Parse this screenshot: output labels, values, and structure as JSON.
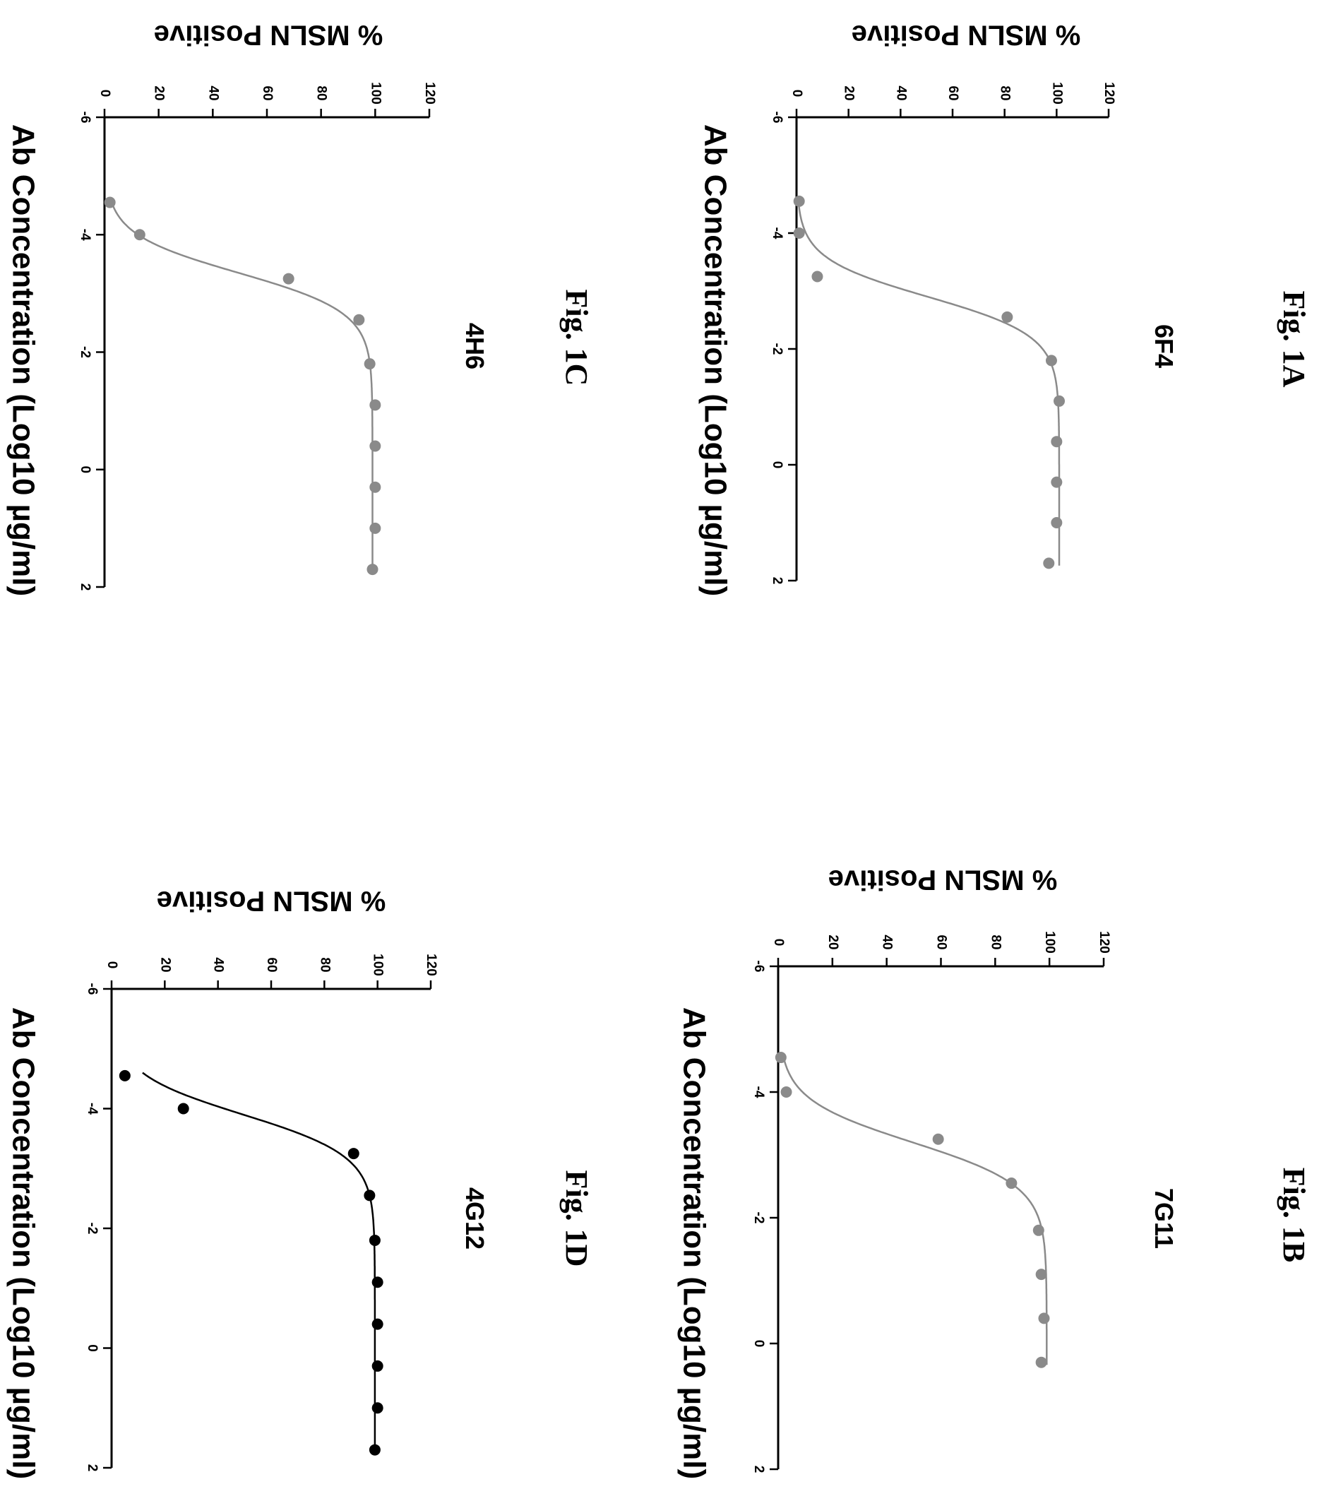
{
  "figure_labels": [
    "Fig. 1A",
    "Fig. 1B",
    "Fig. 1C",
    "Fig. 1D"
  ],
  "chart_data": [
    {
      "type": "scatter",
      "fig_label": "Fig. 1A",
      "title": "6F4",
      "xlabel": "Ab Concentration (Log10 µg/ml)",
      "ylabel": "% MSLN Positive",
      "xlim": [
        -6,
        2
      ],
      "ylim": [
        0,
        120
      ],
      "xticks": [
        -6,
        -4,
        -2,
        0,
        2
      ],
      "yticks": [
        0,
        20,
        40,
        60,
        80,
        100,
        120
      ],
      "color": "#8a8a8a",
      "fit": {
        "bottom": 0,
        "top": 101,
        "ec50": -2.9,
        "hill": 1.3
      },
      "x": [
        -4.55,
        -4.0,
        -3.25,
        -2.55,
        -1.8,
        -1.1,
        -0.4,
        0.3,
        1.0,
        1.7
      ],
      "y": [
        1,
        1,
        8,
        81,
        98,
        101,
        100,
        100,
        100,
        97
      ]
    },
    {
      "type": "scatter",
      "fig_label": "Fig. 1B",
      "title": "7G11",
      "xlabel": "Ab Concentration (Log10 µg/ml)",
      "ylabel": "% MSLN Positive",
      "xlim": [
        -6,
        2
      ],
      "ylim": [
        0,
        120
      ],
      "xticks": [
        -6,
        -4,
        -2,
        0,
        2
      ],
      "yticks": [
        0,
        20,
        40,
        60,
        80,
        100,
        120
      ],
      "color": "#8a8a8a",
      "fit": {
        "bottom": 0,
        "top": 99,
        "ec50": -3.2,
        "hill": 1.25
      },
      "x": [
        -4.55,
        -4.0,
        -3.25,
        -2.55,
        -1.8,
        -1.1,
        -0.4,
        0.3
      ],
      "y": [
        1,
        3,
        59,
        86,
        96,
        97,
        98,
        97
      ]
    },
    {
      "type": "scatter",
      "fig_label": "Fig. 1C",
      "title": "4H6",
      "xlabel": "Ab Concentration (Log10 µg/ml)",
      "ylabel": "% MSLN Positive",
      "xlim": [
        -6,
        2
      ],
      "ylim": [
        0,
        120
      ],
      "xticks": [
        -6,
        -4,
        -2,
        0,
        2
      ],
      "yticks": [
        0,
        20,
        40,
        60,
        80,
        100,
        120
      ],
      "color": "#8a8a8a",
      "fit": {
        "bottom": 0,
        "top": 99,
        "ec50": -3.35,
        "hill": 1.3
      },
      "x": [
        -4.55,
        -4.0,
        -3.25,
        -2.55,
        -1.8,
        -1.1,
        -0.4,
        0.3,
        1.0,
        1.7
      ],
      "y": [
        2,
        13,
        68,
        94,
        98,
        100,
        100,
        100,
        100,
        99
      ]
    },
    {
      "type": "scatter",
      "fig_label": "Fig. 1D",
      "title": "4G12",
      "xlabel": "Ab Concentration (Log10 µg/ml)",
      "ylabel": "% MSLN Positive",
      "xlim": [
        -6,
        2
      ],
      "ylim": [
        0,
        120
      ],
      "xticks": [
        -6,
        -4,
        -2,
        0,
        2
      ],
      "yticks": [
        0,
        20,
        40,
        60,
        80,
        100,
        120
      ],
      "color": "#000000",
      "fit": {
        "bottom": 0,
        "top": 99,
        "ec50": -3.9,
        "hill": 1.25
      },
      "x": [
        -4.55,
        -4.0,
        -3.25,
        -2.55,
        -1.8,
        -1.1,
        -0.4,
        0.3,
        1.0,
        1.7
      ],
      "y": [
        5,
        27,
        91,
        97,
        99,
        100,
        100,
        100,
        100,
        99
      ]
    }
  ]
}
